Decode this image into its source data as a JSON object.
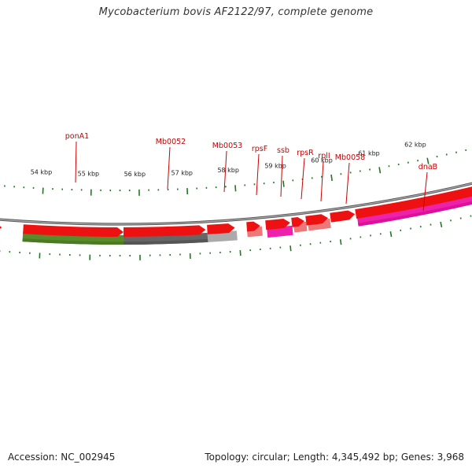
{
  "title": "Mycobacterium bovis AF2122/97, complete genome",
  "footer": {
    "accession": "Accession: NC_002945",
    "stats": "Topology: circular; Length: 4,345,492 bp; Genes: 3,968"
  },
  "colors": {
    "cds_red": "#ee1111",
    "backbone": "#888888",
    "tick_green": "#227722",
    "label_red": "#cc0000"
  },
  "gene_labels": [
    {
      "id": "ponA1",
      "text": "ponA1",
      "color": "#5a8a2a"
    },
    {
      "id": "mb0052",
      "text": "Mb0052",
      "color": "#666666"
    },
    {
      "id": "mb0053",
      "text": "Mb0053",
      "color": "#aaaaaa"
    },
    {
      "id": "rpsf",
      "text": "rpsF",
      "color": "#ee7777"
    },
    {
      "id": "ssb",
      "text": "ssb",
      "color": "#ee22aa"
    },
    {
      "id": "rpsr",
      "text": "rpsR",
      "color": "#ee7777"
    },
    {
      "id": "rpli",
      "text": "rplI",
      "color": "#ee7777"
    },
    {
      "id": "mb0058",
      "text": "Mb0058",
      "color": "#dddddd"
    },
    {
      "id": "dnab",
      "text": "dnaB",
      "color": "#ee22aa"
    }
  ],
  "scale_labels": [
    "54 kbp",
    "55 kbp",
    "56 kbp",
    "57 kbp",
    "58 kbp",
    "59 kbp",
    "60 kbp",
    "61 kbp",
    "62 kbp"
  ]
}
